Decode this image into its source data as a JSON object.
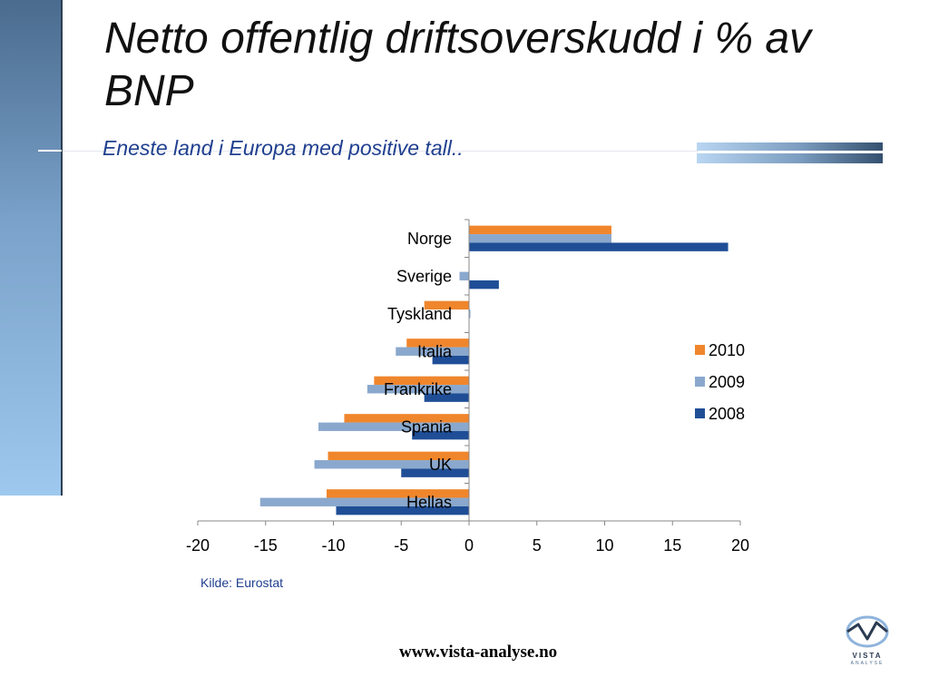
{
  "slide": {
    "title": "Netto offentlig driftsoverskudd i % av BNP",
    "subtitle": "Eneste land i Europa med positive tall..",
    "source": "Kilde: Eurostat",
    "url": "www.vista-analyse.no",
    "logo_text": "VISTA",
    "logo_sub": "ANALYSE"
  },
  "chart_data": {
    "type": "bar",
    "orientation": "horizontal",
    "title": "",
    "xlabel": "",
    "ylabel": "",
    "categories": [
      "Norge",
      "Sverige",
      "Tyskland",
      "Italia",
      "Frankrike",
      "Spania",
      "UK",
      "Hellas"
    ],
    "series": [
      {
        "name": "2010",
        "color": "#f0862c",
        "values": [
          10.5,
          0,
          -3.3,
          -4.6,
          -7.0,
          -9.2,
          -10.4,
          -10.5
        ]
      },
      {
        "name": "2009",
        "color": "#8aa8cd",
        "values": [
          10.5,
          -0.7,
          0.1,
          -5.4,
          -7.5,
          -11.1,
          -11.4,
          -15.4
        ]
      },
      {
        "name": "2008",
        "color": "#1f4e96",
        "values": [
          19.1,
          2.2,
          0.0,
          -2.7,
          -3.3,
          -4.2,
          -5.0,
          -9.8
        ]
      }
    ],
    "xlim": [
      -20,
      20
    ],
    "xticks": [
      -20,
      -15,
      -10,
      -5,
      0,
      5,
      10,
      15,
      20
    ],
    "grid": false,
    "legend": "right"
  }
}
